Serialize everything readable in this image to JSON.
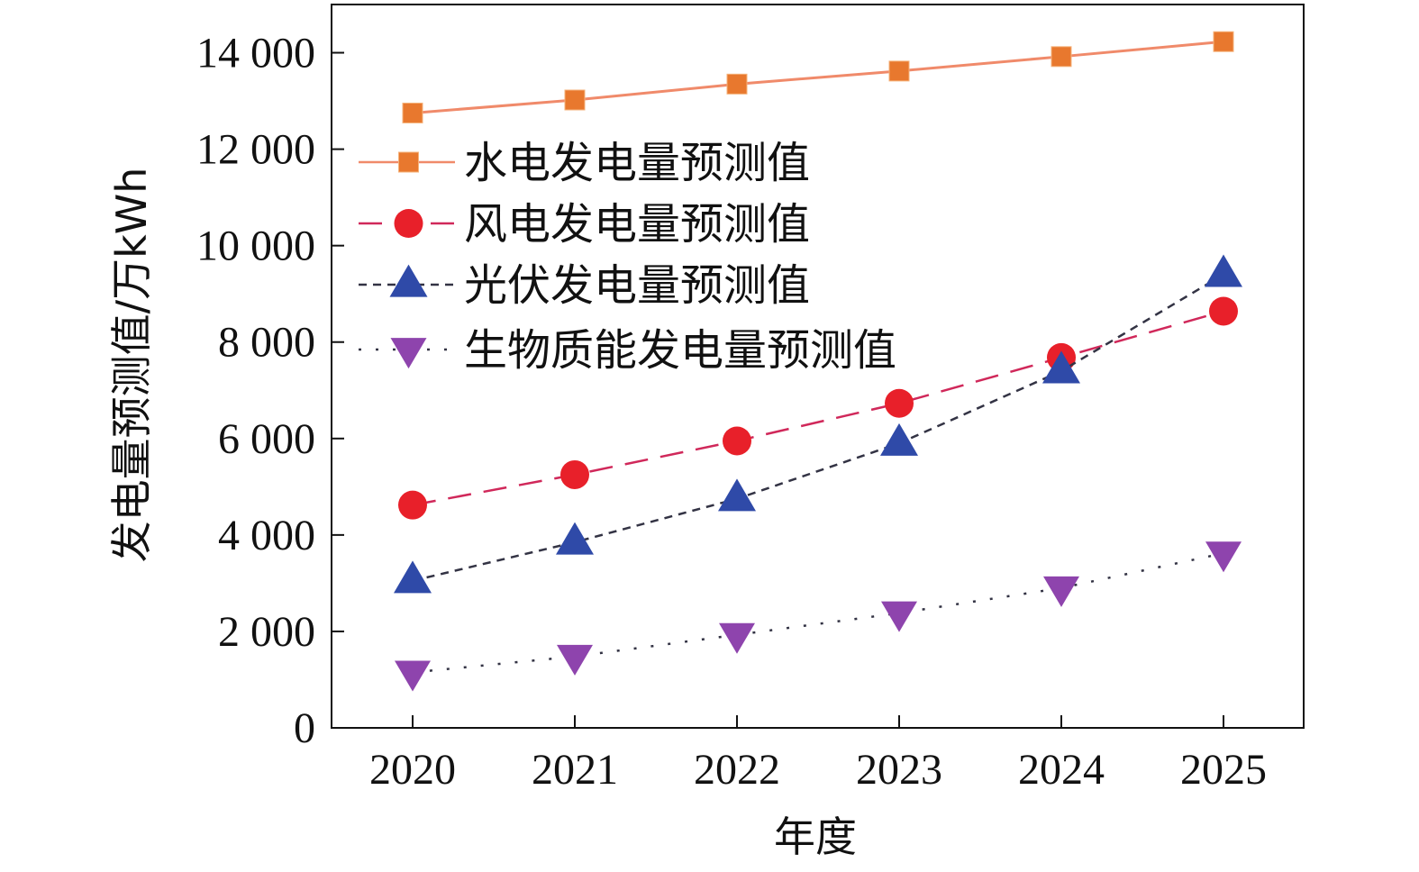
{
  "chart_data": {
    "type": "line",
    "title": "",
    "xlabel": "年度",
    "ylabel": "发电量预测值/万kWh",
    "x": [
      "2020",
      "2021",
      "2022",
      "2023",
      "2024",
      "2025"
    ],
    "ylim": [
      0,
      15000
    ],
    "y_ticks": [
      0,
      2000,
      4000,
      6000,
      8000,
      10000,
      12000,
      14000
    ],
    "y_tick_labels": [
      "0",
      "2 000",
      "4 000",
      "6 000",
      "8 000",
      "10 000",
      "12 000",
      "14 000"
    ],
    "grid": false,
    "legend_position": "upper-left",
    "series": [
      {
        "name": "水电发电量预测值",
        "values": [
          12750,
          13020,
          13350,
          13620,
          13920,
          14230
        ],
        "color": "#e8782e",
        "line_style": "solid",
        "marker": "square"
      },
      {
        "name": "风电发电量预测值",
        "values": [
          4620,
          5250,
          5950,
          6730,
          7680,
          8640
        ],
        "color": "#e8202a",
        "line_style": "dashed",
        "marker": "circle"
      },
      {
        "name": "光伏发电量预测值",
        "values": [
          3050,
          3850,
          4750,
          5900,
          7400,
          9400
        ],
        "color": "#2f4aa8",
        "line_style": "dash-short",
        "marker": "triangle-up"
      },
      {
        "name": "生物质能发电量预测值",
        "values": [
          1150,
          1480,
          1930,
          2380,
          2900,
          3620
        ],
        "color": "#8e44ad",
        "line_style": "dotted",
        "marker": "triangle-down"
      }
    ]
  }
}
